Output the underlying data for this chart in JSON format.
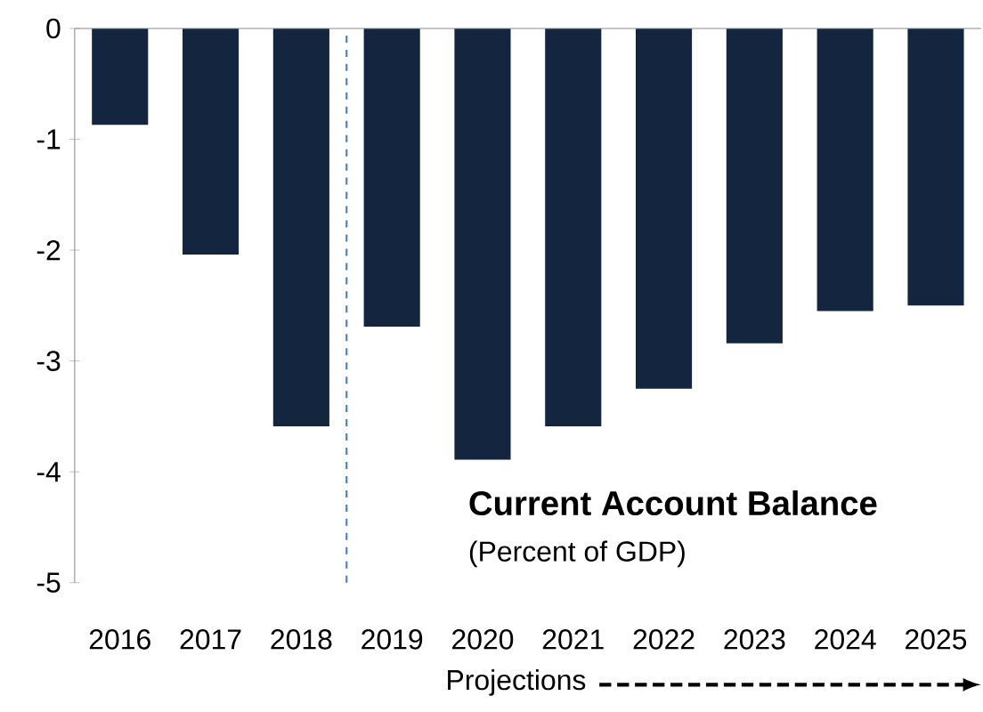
{
  "chart_data": {
    "type": "bar",
    "title": "Current Account Balance",
    "subtitle": "(Percent of GDP)",
    "x": [
      2016,
      2017,
      2018,
      2019,
      2020,
      2021,
      2022,
      2023,
      2024,
      2025
    ],
    "values": [
      -0.87,
      -2.04,
      -3.59,
      -2.69,
      -3.89,
      -3.59,
      -3.25,
      -2.84,
      -2.55,
      -2.5
    ],
    "color": "#13253f",
    "xlim": [
      2015.5,
      2025.5
    ],
    "xticks": [
      2016,
      2017,
      2018,
      2019,
      2020,
      2021,
      2022,
      2023,
      2024,
      2025
    ],
    "ylim": [
      -5,
      0
    ],
    "yticks": [
      -5,
      -4,
      -3,
      -2,
      -1,
      0
    ],
    "ref_lines": [
      {
        "axis": "x",
        "value": 2018.5,
        "color": "#4a7ebf",
        "line_style": "dashed"
      }
    ],
    "annotations": [
      "Projections"
    ]
  }
}
